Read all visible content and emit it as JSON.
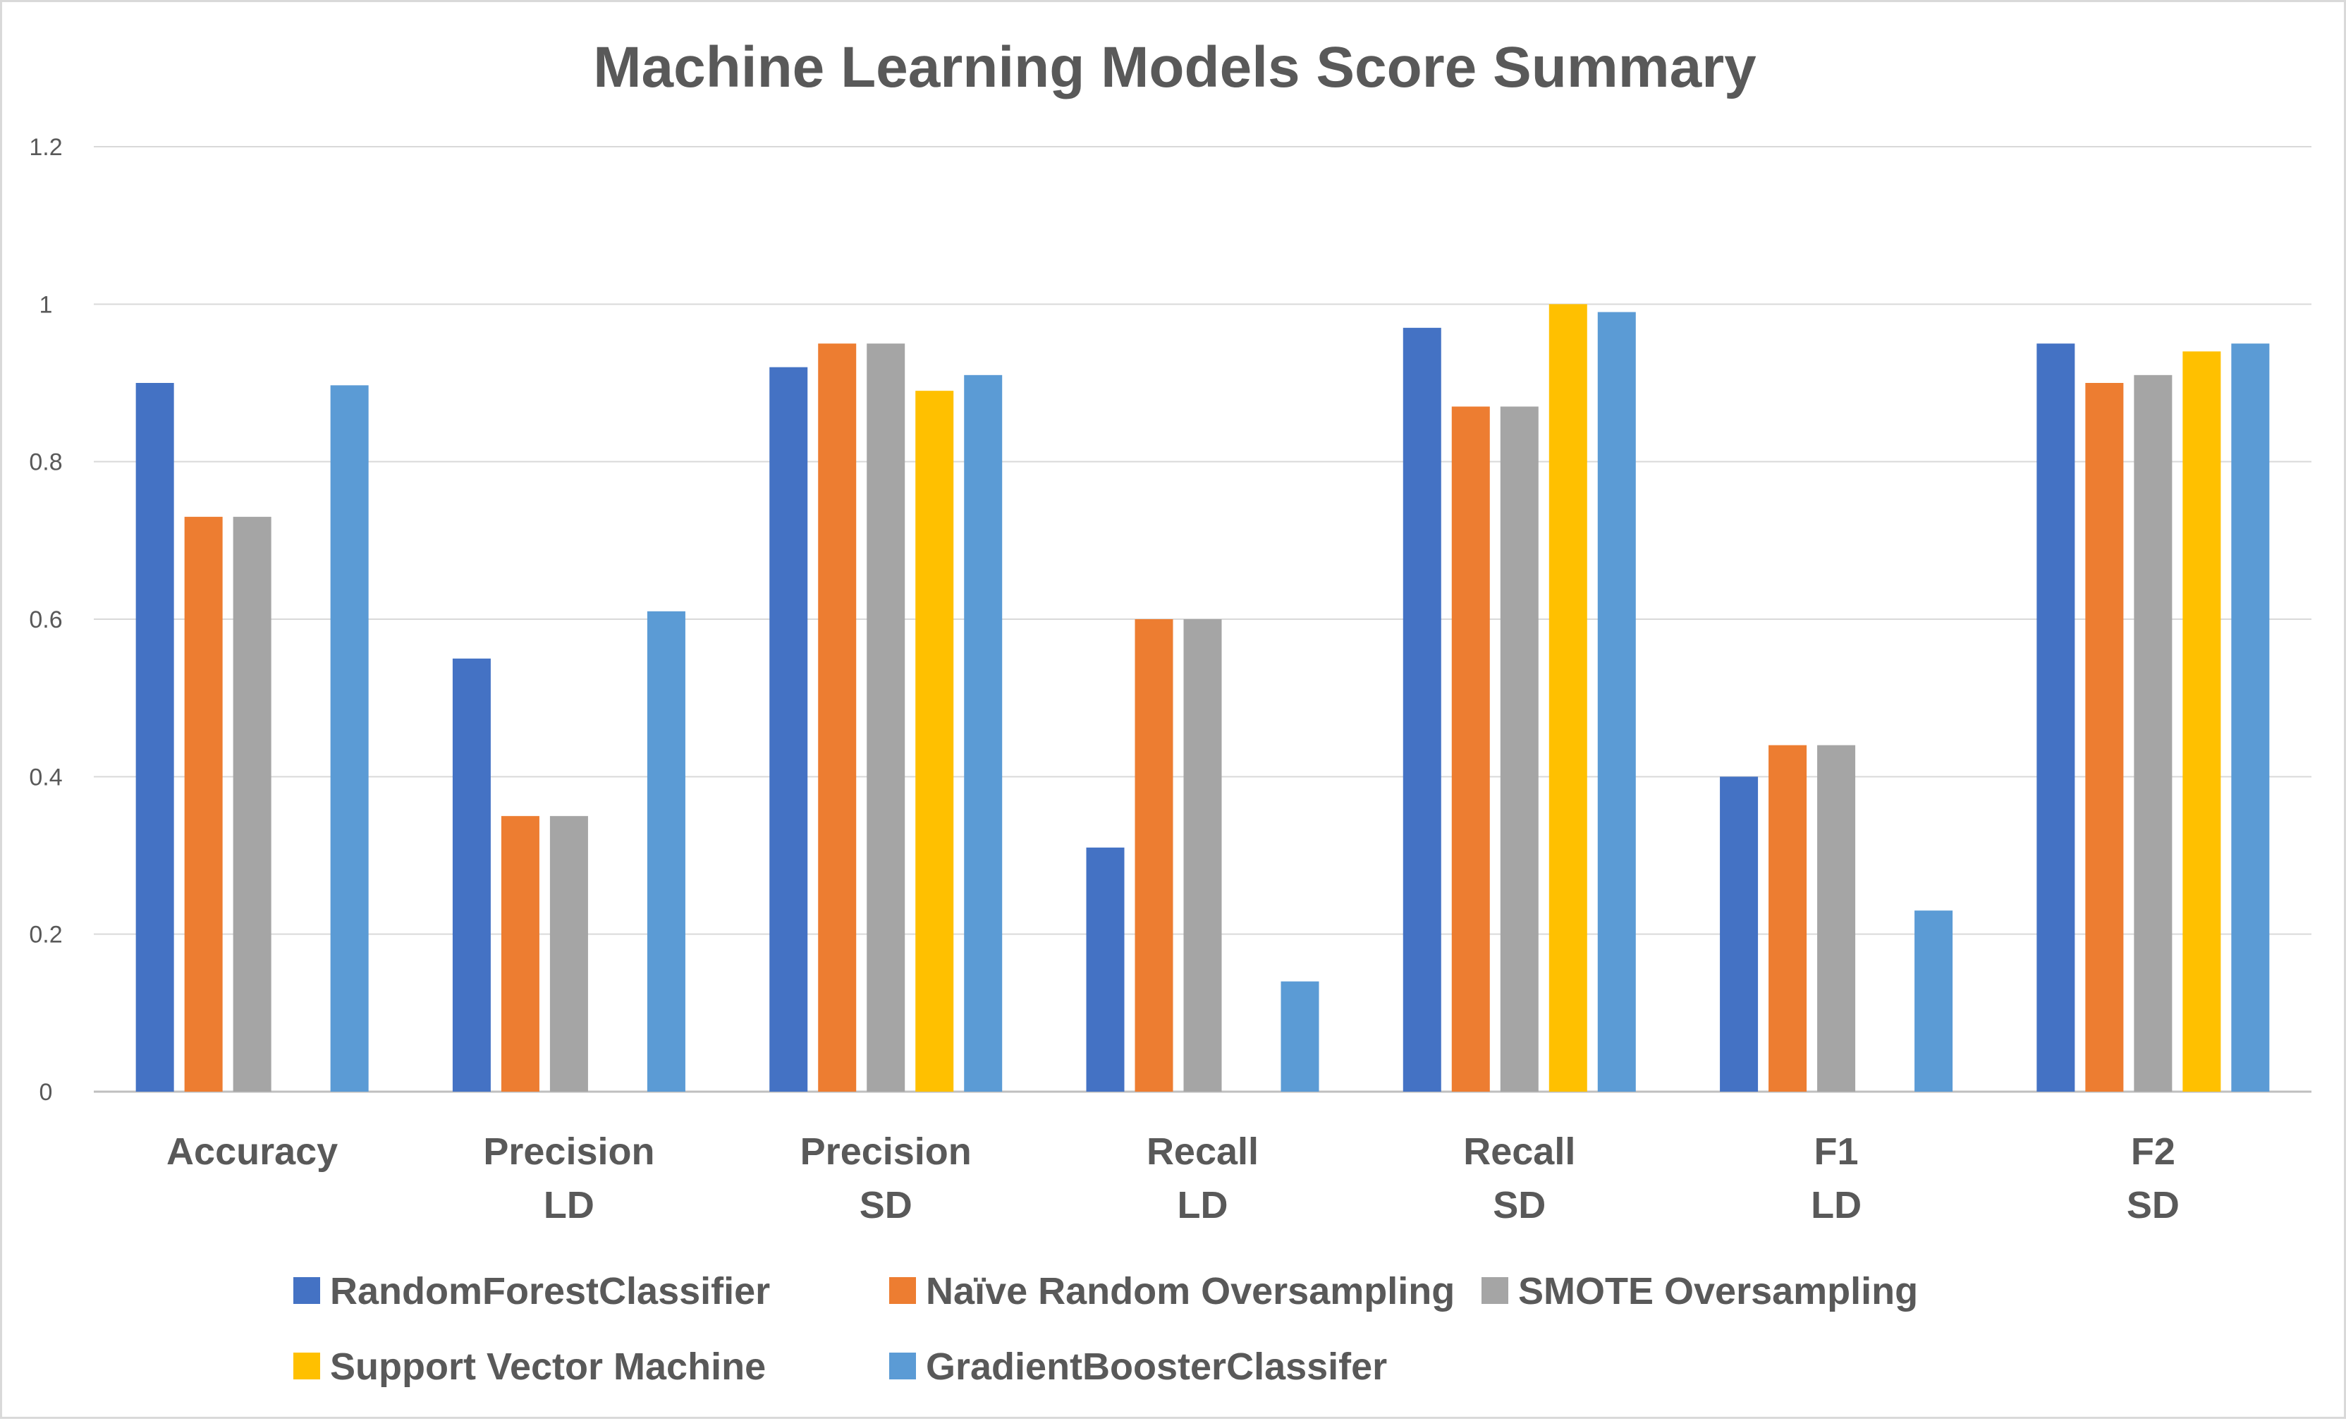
{
  "chart_data": {
    "type": "bar",
    "title": "Machine Learning Models Score Summary",
    "xlabel": "",
    "ylabel": "",
    "ylim": [
      0,
      1.2
    ],
    "yticks": [
      0,
      0.2,
      0.4,
      0.6,
      0.8,
      1,
      1.2
    ],
    "ytick_labels": [
      "0",
      "0.2",
      "0.4",
      "0.6",
      "0.8",
      "1",
      "1.2"
    ],
    "grid": true,
    "legend_position": "bottom",
    "categories": [
      [
        "Accuracy"
      ],
      [
        "Precision",
        "LD"
      ],
      [
        "Precision",
        "SD"
      ],
      [
        "Recall",
        "LD"
      ],
      [
        "Recall",
        "SD"
      ],
      [
        "F1",
        "LD"
      ],
      [
        "F2",
        "SD"
      ]
    ],
    "series": [
      {
        "name": "RandomForestClassifier",
        "color": "#4472c4",
        "values": [
          0.9,
          0.55,
          0.92,
          0.31,
          0.97,
          0.4,
          0.95
        ]
      },
      {
        "name": "Naïve Random Oversampling",
        "color": "#ed7d31",
        "values": [
          0.73,
          0.35,
          0.95,
          0.6,
          0.87,
          0.44,
          0.9
        ]
      },
      {
        "name": "SMOTE Oversampling",
        "color": "#a5a5a5",
        "values": [
          0.73,
          0.35,
          0.95,
          0.6,
          0.87,
          0.44,
          0.91
        ]
      },
      {
        "name": "Support Vector Machine",
        "color": "#ffc000",
        "values": [
          0,
          0,
          0.89,
          0,
          1.0,
          0,
          0.94
        ]
      },
      {
        "name": "GradientBoosterClassifer",
        "color": "#5b9bd5",
        "values": [
          0.897,
          0.61,
          0.91,
          0.14,
          0.99,
          0.23,
          0.95
        ]
      }
    ]
  }
}
